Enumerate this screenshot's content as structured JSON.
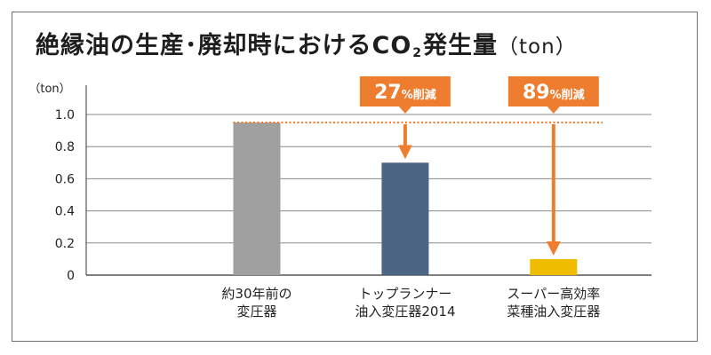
{
  "title": {
    "main": "絶縁油の生産･廃却時におけるCO",
    "subscript": "2",
    "rest": "発生量",
    "unit": "（ton）"
  },
  "chart_data": {
    "type": "bar",
    "ylabel": "（ton）",
    "ylim": [
      0,
      1.0
    ],
    "yticks": [
      "0",
      "0.2",
      "0.4",
      "0.6",
      "0.8",
      "1.0"
    ],
    "grid": true,
    "categories": [
      [
        "約30年前の",
        "変圧器"
      ],
      [
        "トップランナー",
        "油入変圧器2014"
      ],
      [
        "スーパー高効率",
        "菜種油入変圧器"
      ]
    ],
    "values": [
      0.95,
      0.7,
      0.1
    ],
    "reference_value": 0.95,
    "annotations": [
      {
        "category_index": 1,
        "number": "27",
        "suffix": "%削減"
      },
      {
        "category_index": 2,
        "number": "89",
        "suffix": "%削減"
      }
    ]
  },
  "colors": {
    "bars": [
      "#a0a0a0",
      "#4d6585",
      "#f0bc00"
    ],
    "accent": "#ee7d2f",
    "grid": "#8a8a8a",
    "axis": "#333333",
    "text": "#222222"
  }
}
